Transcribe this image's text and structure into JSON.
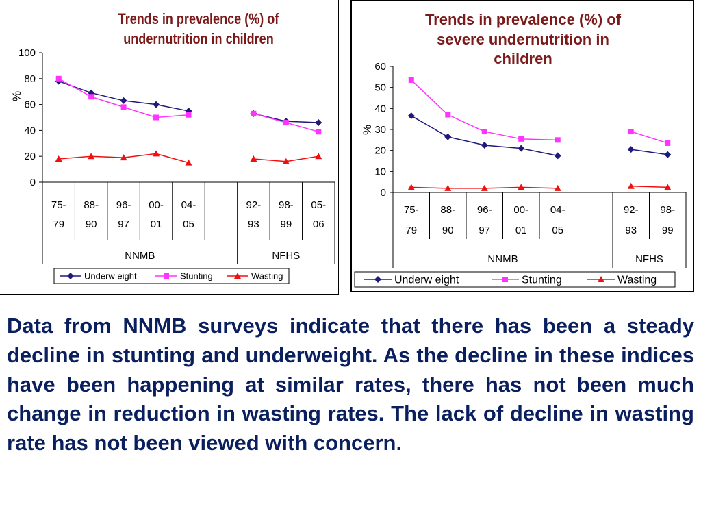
{
  "chart_data": [
    {
      "type": "line",
      "title": "Trends in prevalence (%) of undernutrition in children",
      "ylabel": "%",
      "ylim": [
        0,
        100
      ],
      "yticks": [
        0,
        20,
        40,
        60,
        80,
        100
      ],
      "groups": [
        {
          "name": "NNMB",
          "categories": [
            "75-79",
            "88-90",
            "96-97",
            "00-01",
            "04-05"
          ]
        },
        {
          "name": "NFHS",
          "categories": [
            "92-93",
            "98-99",
            "05-06"
          ]
        }
      ],
      "category_labels": [
        [
          "75-",
          "79"
        ],
        [
          "88-",
          "90"
        ],
        [
          "96-",
          "97"
        ],
        [
          "00-",
          "01"
        ],
        [
          "04-",
          "05"
        ],
        [
          "",
          ""
        ],
        [
          "92-",
          "93"
        ],
        [
          "98-",
          "99"
        ],
        [
          "05-",
          "06"
        ]
      ],
      "series": [
        {
          "name": "Underweight",
          "legend_label": "Underw eight",
          "color": "#1f1a7a",
          "marker": "diamond",
          "segments": [
            [
              78,
              69,
              63,
              60,
              55
            ],
            [
              53,
              47,
              46
            ]
          ]
        },
        {
          "name": "Stunting",
          "legend_label": "Stunting",
          "color": "#ff33ff",
          "marker": "square",
          "segments": [
            [
              80,
              66,
              58,
              50,
              52
            ],
            [
              53,
              46,
              39
            ]
          ]
        },
        {
          "name": "Wasting",
          "legend_label": "Wasting",
          "color": "#ee1111",
          "marker": "triangle",
          "segments": [
            [
              18,
              20,
              19,
              22,
              15
            ],
            [
              18,
              16,
              20
            ]
          ]
        }
      ]
    },
    {
      "type": "line",
      "title": "Trends in prevalence (%) of severe undernutrition in children",
      "title_lines": [
        "Trends in prevalence (%) of",
        "severe undernutrition in",
        "children"
      ],
      "ylabel": "%",
      "ylim": [
        0,
        60
      ],
      "yticks": [
        0,
        10,
        20,
        30,
        40,
        50,
        60
      ],
      "groups": [
        {
          "name": "NNMB",
          "categories": [
            "75-79",
            "88-90",
            "96-97",
            "00-01",
            "04-05"
          ]
        },
        {
          "name": "NFHS",
          "categories": [
            "92-93",
            "98-99"
          ]
        }
      ],
      "category_labels": [
        [
          "75-",
          "79"
        ],
        [
          "88-",
          "90"
        ],
        [
          "96-",
          "97"
        ],
        [
          "00-",
          "01"
        ],
        [
          "04-",
          "05"
        ],
        [
          "",
          ""
        ],
        [
          "92-",
          "93"
        ],
        [
          "98-",
          "99"
        ]
      ],
      "series": [
        {
          "name": "Underweight",
          "legend_label": "Underw eight",
          "color": "#1f1a7a",
          "marker": "diamond",
          "segments": [
            [
              36.5,
              26.5,
              22.5,
              21,
              17.5
            ],
            [
              20.5,
              18
            ]
          ]
        },
        {
          "name": "Stunting",
          "legend_label": "Stunting",
          "color": "#ff33ff",
          "marker": "square",
          "segments": [
            [
              53.5,
              37,
              29,
              25.5,
              25
            ],
            [
              29,
              23.5
            ]
          ]
        },
        {
          "name": "Wasting",
          "legend_label": "Wasting",
          "color": "#ee1111",
          "marker": "triangle",
          "segments": [
            [
              2.5,
              2,
              2,
              2.5,
              2
            ],
            [
              3,
              2.5
            ]
          ]
        }
      ]
    }
  ],
  "chart1_title_lines": [
    "Trends in prevalence (%) of",
    "undernutrition in children"
  ],
  "body_text": "Data from NNMB surveys indicate that there has been a steady decline in stunting and underweight. As the decline in these indices have been happening at similar rates, there has not been much change in reduction in wasting rates. The lack of decline in wasting rate has not been viewed with concern."
}
